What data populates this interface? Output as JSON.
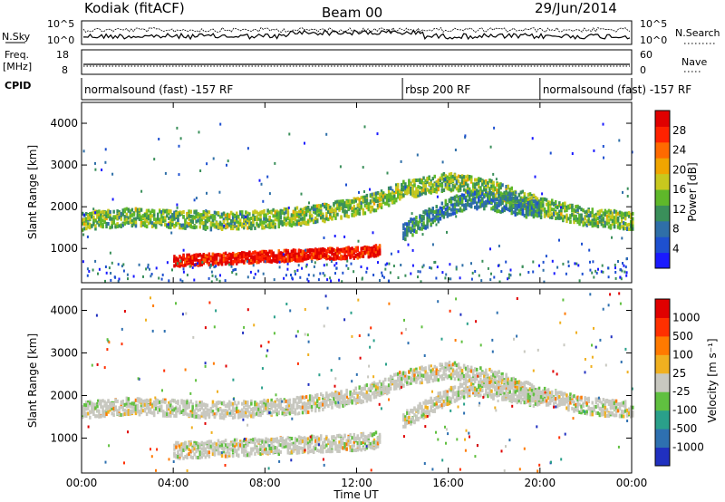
{
  "header": {
    "station": "Kodiak (fitACF)",
    "beam": "Beam 00",
    "date": "29/Jun/2014"
  },
  "top_panels": {
    "nsky_label": "N.Sky",
    "nsky_ticks": [
      "10^5",
      "10^0"
    ],
    "nsearch_label": "N.Search",
    "nsearch_ticks": [
      "10^5",
      "10^0"
    ],
    "freq_label": "Freq.",
    "freq_unit": "[MHz]",
    "freq_ticks": [
      "18",
      "8"
    ],
    "nave_label": "Nave",
    "nave_ticks": [
      "60",
      "0"
    ],
    "cpid_label": "CPID",
    "programs": [
      {
        "label": "normalsound (fast) -157 RF",
        "start_hour": 0,
        "end_hour": 14
      },
      {
        "label": "rbsp 200 RF",
        "start_hour": 14,
        "end_hour": 20
      },
      {
        "label": "normalsound (fast) -157 RF",
        "start_hour": 20,
        "end_hour": 24
      }
    ]
  },
  "chart_data": [
    {
      "type": "heatmap",
      "name": "power",
      "ylabel": "Slant Range [km]",
      "x_range_hours": [
        0,
        24
      ],
      "ylim": [
        180,
        4500
      ],
      "y_ticks": [
        1000,
        2000,
        3000,
        4000
      ],
      "colorbar": {
        "label": "Power [dB]",
        "ticks": [
          "4",
          "8",
          "12",
          "16",
          "20",
          "24",
          "28"
        ],
        "colors": [
          "#1a1aff",
          "#1e50d0",
          "#2f6fa8",
          "#3a8f5a",
          "#5fb82a",
          "#c8c81e",
          "#f0a500",
          "#ff6a00",
          "#ff2200",
          "#e00000"
        ]
      },
      "echo_bands": [
        {
          "x": [
            0.0,
            2.0,
            4.0,
            6.0,
            8.0,
            10.0,
            12.0,
            13.0,
            14.0,
            16.0,
            18.0,
            20.0,
            22.0,
            24.0
          ],
          "y": [
            1650,
            1750,
            1700,
            1650,
            1700,
            1800,
            2000,
            2150,
            2400,
            2600,
            2400,
            2000,
            1750,
            1650
          ],
          "power_db": 14
        },
        {
          "x": [
            4.0,
            6.0,
            8.0,
            10.0,
            12.0,
            13.0
          ],
          "y": [
            700,
            750,
            800,
            850,
            900,
            950
          ],
          "power_db": 28
        },
        {
          "x": [
            14.0,
            15.0,
            16.0,
            17.0,
            18.0,
            20.0
          ],
          "y": [
            1400,
            1700,
            2000,
            2200,
            2100,
            1900
          ],
          "power_db": 10
        }
      ]
    },
    {
      "type": "heatmap",
      "name": "velocity",
      "ylabel": "Slant Range [km]",
      "xlabel": "Time UT",
      "x_range_hours": [
        0,
        24
      ],
      "x_ticks": [
        "00:00",
        "04:00",
        "08:00",
        "12:00",
        "16:00",
        "20:00",
        "00:00"
      ],
      "ylim": [
        180,
        4500
      ],
      "y_ticks": [
        1000,
        2000,
        3000,
        4000
      ],
      "colorbar": {
        "label": "Velocity [m s⁻¹]",
        "ticks": [
          "1000",
          "500",
          "100",
          "25",
          "-25",
          "-100",
          "-500",
          "-1000"
        ],
        "colors": [
          "#2030c0",
          "#2e70b0",
          "#2aa08a",
          "#60c040",
          "#c8c8c0",
          "#f0b020",
          "#ff7a00",
          "#ff3000",
          "#e00000"
        ]
      }
    }
  ]
}
